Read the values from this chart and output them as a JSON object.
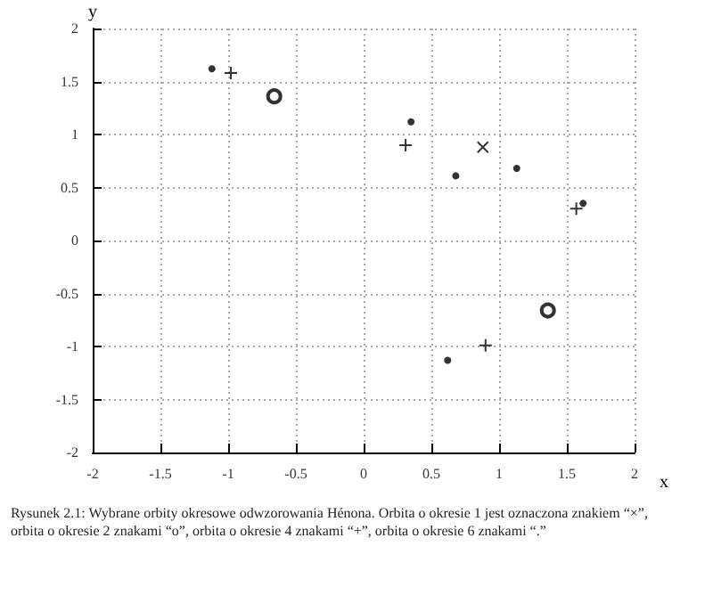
{
  "chart_data": {
    "type": "scatter",
    "xlabel": "x",
    "ylabel": "y",
    "xlim": [
      -2,
      2
    ],
    "ylim": [
      -2,
      2
    ],
    "xticks": [
      -2,
      -1.5,
      -1,
      -0.5,
      0,
      0.5,
      1,
      1.5,
      2
    ],
    "yticks": [
      -2,
      -1.5,
      -1,
      -0.5,
      0,
      0.5,
      1,
      1.5,
      2
    ],
    "grid": true,
    "series": [
      {
        "marker": "cross",
        "color": "#000000",
        "x": [
          0.88
        ],
        "values": [
          0.88
        ]
      },
      {
        "marker": "circle",
        "color": "#000000",
        "x": [
          -0.66,
          1.36
        ],
        "values": [
          1.36,
          -0.66
        ]
      },
      {
        "marker": "plus",
        "color": "#000000",
        "x": [
          -0.98,
          0.31,
          1.57,
          0.9
        ],
        "values": [
          1.58,
          0.9,
          0.3,
          -0.99
        ]
      },
      {
        "color": "#000000",
        "x": [
          -1.12,
          0.35,
          0.68,
          1.13,
          1.62,
          0.62
        ],
        "values": [
          1.62,
          1.12,
          0.61,
          0.68,
          0.35,
          -1.13
        ]
      }
    ],
    "annotations": [
      "Rysunek 2.1: Wybrane orbity okresowe odwzorowania Hénona. Orbita o okresie 1 jest oznaczona znakiem “×”, orbita o okresie 2 znakami “o”, orbita o okresie 4 znakami “+”, orbita o okresie 6 znakami “.”"
    ]
  }
}
